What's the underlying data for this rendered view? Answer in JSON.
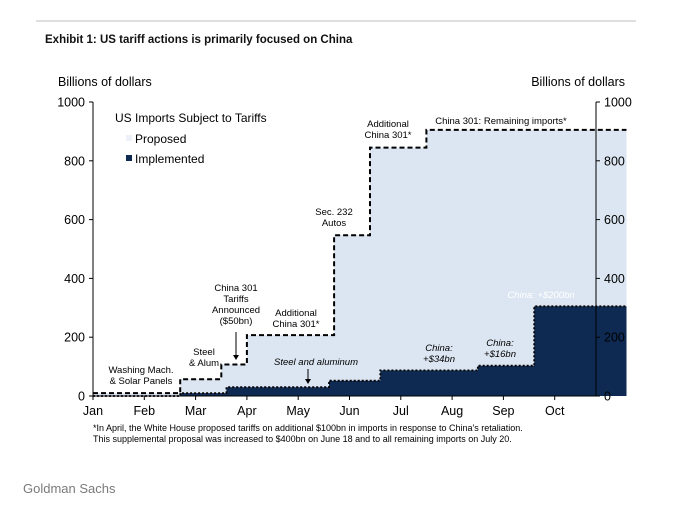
{
  "header": {
    "title": "Exhibit 1: US tariff actions is primarily focused on China"
  },
  "source": "Goldman Sachs",
  "footnote": [
    "*In  April, the White House proposed tariffs on additional $100bn in imports in response to China's retaliation.",
    "This supplemental proposal was increased to $400bn on June 18 and to all remaining imports on July 20."
  ],
  "chart_data": {
    "type": "area",
    "title": "",
    "xlabel": "",
    "ylabel_left": "Billions of dollars",
    "ylabel_right": "Billions of dollars",
    "ylim": [
      0,
      1000
    ],
    "yticks": [
      0,
      200,
      400,
      600,
      800,
      1000
    ],
    "xlim": [
      0,
      10.55
    ],
    "xticks": [
      {
        "label": "Jan",
        "x": 0
      },
      {
        "label": "Feb",
        "x": 1
      },
      {
        "label": "Mar",
        "x": 2
      },
      {
        "label": "Apr",
        "x": 3
      },
      {
        "label": "May",
        "x": 4
      },
      {
        "label": "Jun",
        "x": 5
      },
      {
        "label": "Jul",
        "x": 6
      },
      {
        "label": "Aug",
        "x": 7
      },
      {
        "label": "Sep",
        "x": 8
      },
      {
        "label": "Oct",
        "x": 9
      }
    ],
    "x_units": "months from start of January",
    "grid": false,
    "legend": {
      "title": "US Imports Subject to Tariffs",
      "placement": "top-left",
      "entries": [
        "Proposed",
        "Implemented"
      ]
    },
    "colors": {
      "proposed": "#dce6f2",
      "implemented": "#0e2a52",
      "line": "#000000"
    },
    "series": [
      {
        "name": "Proposed",
        "style": "dashed-step",
        "points": [
          [
            0,
            10
          ],
          [
            1.7,
            10
          ],
          [
            1.7,
            57
          ],
          [
            2.5,
            57
          ],
          [
            2.5,
            107
          ],
          [
            3.0,
            107
          ],
          [
            3.0,
            207
          ],
          [
            4.7,
            207
          ],
          [
            4.7,
            547
          ],
          [
            5.4,
            547
          ],
          [
            5.4,
            845
          ],
          [
            6.5,
            845
          ],
          [
            6.5,
            905
          ],
          [
            10.4,
            905
          ]
        ]
      },
      {
        "name": "Implemented",
        "style": "filled-step",
        "points": [
          [
            0,
            0
          ],
          [
            1.7,
            0
          ],
          [
            1.7,
            10
          ],
          [
            2.6,
            10
          ],
          [
            2.6,
            30
          ],
          [
            4.6,
            30
          ],
          [
            4.6,
            52
          ],
          [
            5.6,
            52
          ],
          [
            5.6,
            87
          ],
          [
            7.5,
            87
          ],
          [
            7.5,
            103
          ],
          [
            8.6,
            103
          ],
          [
            8.6,
            305
          ],
          [
            10.4,
            305
          ]
        ]
      }
    ],
    "annotations": [
      {
        "lines": [
          "Washing Mach.",
          "& Solar Panels"
        ],
        "style": "normal"
      },
      {
        "lines": [
          "Steel",
          "& Alum"
        ],
        "style": "normal"
      },
      {
        "lines": [
          "China 301",
          "Tariffs",
          "Announced",
          "($50bn)"
        ],
        "style": "normal"
      },
      {
        "lines": [
          "Additional",
          "China 301*"
        ],
        "style": "normal"
      },
      {
        "lines": [
          "Sec. 232",
          "Autos"
        ],
        "style": "normal"
      },
      {
        "lines": [
          "Additional",
          "China 301*"
        ],
        "style": "normal"
      },
      {
        "lines": [
          "China 301: Remaining imports*"
        ],
        "style": "normal"
      },
      {
        "lines": [
          "Steel and aluminum"
        ],
        "style": "italic"
      },
      {
        "lines": [
          "China:",
          "+$34bn"
        ],
        "style": "italic"
      },
      {
        "lines": [
          "China:",
          "+$16bn"
        ],
        "style": "italic"
      },
      {
        "lines": [
          "China: +$200bn"
        ],
        "style": "italic-white"
      }
    ]
  }
}
